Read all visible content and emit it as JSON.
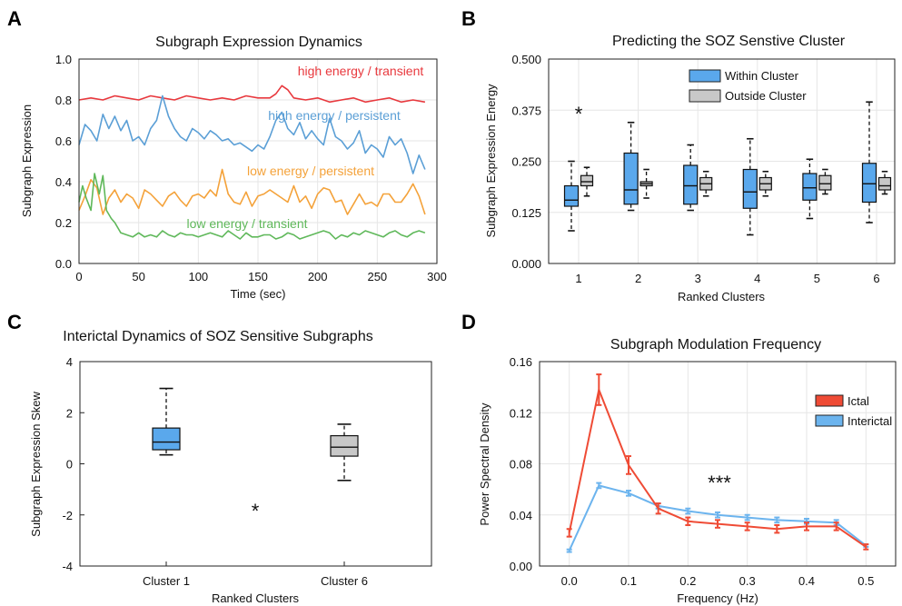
{
  "panels": {
    "A": "A",
    "B": "B",
    "C": "C",
    "D": "D"
  },
  "colors": {
    "red": "#e8383d",
    "blue": "#5b9fd6",
    "orange": "#f4a23a",
    "green": "#5fb85a",
    "box_blue": "#5aa8ec",
    "box_gray": "#c8c8c8",
    "ictal": "#ef4b35",
    "interictal": "#6cb4ee"
  },
  "chart_data": [
    {
      "type": "line",
      "title": "Subgraph Expression Dynamics",
      "xlabel": "Time (sec)",
      "ylabel": "Subgraph Expression",
      "xlim": [
        0,
        300
      ],
      "ylim": [
        0,
        1.0
      ],
      "xticks": [
        "0",
        "50",
        "100",
        "150",
        "200",
        "250",
        "300"
      ],
      "yticks": [
        "0.0",
        "0.2",
        "0.4",
        "0.6",
        "0.8",
        "1.0"
      ],
      "grid": true,
      "annotations": [
        {
          "text": "high energy / transient",
          "color": "#e8383d"
        },
        {
          "text": "high energy / persistent",
          "color": "#5b9fd6"
        },
        {
          "text": "low energy  / persistent",
          "color": "#f4a23a"
        },
        {
          "text": "low energy  / transient",
          "color": "#5fb85a"
        }
      ],
      "series": [
        {
          "color": "#e8383d",
          "x": [
            0,
            10,
            20,
            30,
            40,
            50,
            60,
            70,
            80,
            90,
            100,
            110,
            120,
            130,
            140,
            150,
            160,
            165,
            170,
            175,
            180,
            190,
            200,
            210,
            220,
            230,
            240,
            250,
            260,
            270,
            280,
            290
          ],
          "y": [
            0.8,
            0.81,
            0.8,
            0.82,
            0.81,
            0.8,
            0.82,
            0.81,
            0.8,
            0.82,
            0.81,
            0.8,
            0.81,
            0.8,
            0.82,
            0.81,
            0.81,
            0.83,
            0.87,
            0.85,
            0.81,
            0.8,
            0.81,
            0.79,
            0.8,
            0.81,
            0.79,
            0.8,
            0.81,
            0.79,
            0.8,
            0.79
          ]
        },
        {
          "color": "#5b9fd6",
          "x": [
            0,
            5,
            10,
            15,
            20,
            25,
            30,
            35,
            40,
            45,
            50,
            55,
            60,
            65,
            70,
            75,
            80,
            85,
            90,
            95,
            100,
            105,
            110,
            115,
            120,
            125,
            130,
            135,
            140,
            145,
            150,
            155,
            160,
            165,
            170,
            175,
            180,
            185,
            190,
            195,
            200,
            205,
            210,
            215,
            220,
            225,
            230,
            235,
            240,
            245,
            250,
            255,
            260,
            265,
            270,
            275,
            280,
            285,
            290
          ],
          "y": [
            0.58,
            0.68,
            0.65,
            0.6,
            0.73,
            0.66,
            0.72,
            0.65,
            0.7,
            0.6,
            0.62,
            0.58,
            0.66,
            0.7,
            0.82,
            0.72,
            0.66,
            0.62,
            0.6,
            0.66,
            0.64,
            0.61,
            0.65,
            0.63,
            0.6,
            0.61,
            0.58,
            0.59,
            0.57,
            0.55,
            0.58,
            0.56,
            0.62,
            0.7,
            0.74,
            0.66,
            0.63,
            0.69,
            0.61,
            0.65,
            0.61,
            0.58,
            0.71,
            0.62,
            0.6,
            0.56,
            0.59,
            0.65,
            0.54,
            0.58,
            0.56,
            0.52,
            0.62,
            0.58,
            0.61,
            0.54,
            0.44,
            0.53,
            0.46
          ]
        },
        {
          "color": "#f4a23a",
          "x": [
            0,
            5,
            10,
            15,
            20,
            25,
            30,
            35,
            40,
            45,
            50,
            55,
            60,
            65,
            70,
            75,
            80,
            85,
            90,
            95,
            100,
            105,
            110,
            115,
            120,
            125,
            130,
            135,
            140,
            145,
            150,
            155,
            160,
            165,
            170,
            175,
            180,
            185,
            190,
            195,
            200,
            205,
            210,
            215,
            220,
            225,
            230,
            235,
            240,
            245,
            250,
            255,
            260,
            265,
            270,
            275,
            280,
            285,
            290
          ],
          "y": [
            0.26,
            0.33,
            0.41,
            0.37,
            0.24,
            0.32,
            0.36,
            0.3,
            0.34,
            0.32,
            0.27,
            0.36,
            0.34,
            0.31,
            0.28,
            0.33,
            0.35,
            0.31,
            0.28,
            0.33,
            0.34,
            0.32,
            0.36,
            0.33,
            0.46,
            0.34,
            0.3,
            0.29,
            0.35,
            0.28,
            0.33,
            0.34,
            0.36,
            0.34,
            0.32,
            0.3,
            0.38,
            0.3,
            0.33,
            0.27,
            0.34,
            0.37,
            0.36,
            0.3,
            0.31,
            0.24,
            0.29,
            0.34,
            0.29,
            0.3,
            0.28,
            0.34,
            0.34,
            0.3,
            0.3,
            0.34,
            0.39,
            0.33,
            0.24
          ]
        },
        {
          "color": "#5fb85a",
          "x": [
            0,
            3,
            6,
            10,
            13,
            17,
            20,
            23,
            27,
            30,
            35,
            40,
            45,
            50,
            55,
            60,
            65,
            70,
            75,
            80,
            85,
            90,
            95,
            100,
            105,
            110,
            115,
            120,
            125,
            130,
            135,
            140,
            145,
            150,
            155,
            160,
            165,
            170,
            175,
            180,
            185,
            190,
            195,
            200,
            205,
            210,
            215,
            220,
            225,
            230,
            235,
            240,
            245,
            250,
            255,
            260,
            265,
            270,
            275,
            280,
            285,
            290
          ],
          "y": [
            0.3,
            0.38,
            0.32,
            0.26,
            0.44,
            0.34,
            0.43,
            0.26,
            0.22,
            0.2,
            0.15,
            0.14,
            0.13,
            0.15,
            0.13,
            0.14,
            0.13,
            0.16,
            0.14,
            0.13,
            0.15,
            0.14,
            0.14,
            0.13,
            0.14,
            0.15,
            0.14,
            0.13,
            0.16,
            0.14,
            0.12,
            0.15,
            0.13,
            0.13,
            0.14,
            0.14,
            0.12,
            0.13,
            0.15,
            0.14,
            0.12,
            0.13,
            0.14,
            0.15,
            0.16,
            0.15,
            0.12,
            0.14,
            0.13,
            0.15,
            0.14,
            0.16,
            0.15,
            0.14,
            0.13,
            0.15,
            0.16,
            0.14,
            0.13,
            0.15,
            0.16,
            0.15
          ]
        }
      ]
    },
    {
      "type": "box",
      "title": "Predicting the SOZ Senstive Cluster",
      "xlabel": "Ranked Clusters",
      "ylabel": "Subgraph Expression Energy",
      "ylim": [
        0,
        0.5
      ],
      "yticks": [
        "0.000",
        "0.125",
        "0.250",
        "0.375",
        "0.500"
      ],
      "categories": [
        "1",
        "2",
        "3",
        "4",
        "5",
        "6"
      ],
      "legend": [
        {
          "label": "Within Cluster",
          "color": "#5aa8ec"
        },
        {
          "label": "Outside Cluster",
          "color": "#c8c8c8"
        }
      ],
      "legend_position": "top-right",
      "significance": "*",
      "series": [
        {
          "color": "#5aa8ec",
          "boxes": [
            {
              "min": 0.08,
              "q1": 0.14,
              "median": 0.155,
              "q3": 0.19,
              "max": 0.25
            },
            {
              "min": 0.13,
              "q1": 0.145,
              "median": 0.18,
              "q3": 0.27,
              "max": 0.345
            },
            {
              "min": 0.13,
              "q1": 0.145,
              "median": 0.19,
              "q3": 0.24,
              "max": 0.29
            },
            {
              "min": 0.07,
              "q1": 0.135,
              "median": 0.175,
              "q3": 0.23,
              "max": 0.305
            },
            {
              "min": 0.11,
              "q1": 0.155,
              "median": 0.185,
              "q3": 0.22,
              "max": 0.255
            },
            {
              "min": 0.1,
              "q1": 0.15,
              "median": 0.195,
              "q3": 0.245,
              "max": 0.395
            }
          ]
        },
        {
          "color": "#c8c8c8",
          "boxes": [
            {
              "min": 0.165,
              "q1": 0.19,
              "median": 0.2,
              "q3": 0.215,
              "max": 0.235
            },
            {
              "min": 0.16,
              "q1": 0.19,
              "median": 0.195,
              "q3": 0.2,
              "max": 0.23
            },
            {
              "min": 0.165,
              "q1": 0.18,
              "median": 0.195,
              "q3": 0.21,
              "max": 0.225
            },
            {
              "min": 0.165,
              "q1": 0.18,
              "median": 0.195,
              "q3": 0.21,
              "max": 0.225
            },
            {
              "min": 0.17,
              "q1": 0.18,
              "median": 0.195,
              "q3": 0.215,
              "max": 0.23
            },
            {
              "min": 0.17,
              "q1": 0.18,
              "median": 0.19,
              "q3": 0.21,
              "max": 0.225
            }
          ]
        }
      ]
    },
    {
      "type": "box",
      "title": "Interictal Dynamics of SOZ Sensitive Subgraphs",
      "xlabel": "Ranked Clusters",
      "ylabel": "Subgraph Expression Skew",
      "ylim": [
        -4,
        4
      ],
      "yticks": [
        "4",
        "2",
        "0",
        "-2",
        "-4"
      ],
      "categories": [
        "Cluster 1",
        "Cluster 6"
      ],
      "significance": "*",
      "boxes": [
        {
          "color": "#5aa8ec",
          "min": 0.35,
          "q1": 0.55,
          "median": 0.85,
          "q3": 1.4,
          "max": 2.95
        },
        {
          "color": "#c8c8c8",
          "min": -0.65,
          "q1": 0.3,
          "median": 0.65,
          "q3": 1.1,
          "max": 1.55
        }
      ]
    },
    {
      "type": "line",
      "title": "Subgraph Modulation Frequency",
      "xlabel": "Frequency (Hz)",
      "ylabel": "Power Spectral Density",
      "xlim": [
        -0.05,
        0.55
      ],
      "ylim": [
        0,
        0.16
      ],
      "xticks": [
        "0.0",
        "0.1",
        "0.2",
        "0.3",
        "0.4",
        "0.5"
      ],
      "yticks": [
        "0.00",
        "0.04",
        "0.08",
        "0.12",
        "0.16"
      ],
      "grid": true,
      "legend_position": "top-right",
      "significance": "***",
      "x": [
        0.0,
        0.05,
        0.1,
        0.15,
        0.2,
        0.25,
        0.3,
        0.35,
        0.4,
        0.45,
        0.5
      ],
      "series": [
        {
          "name": "Ictal",
          "color": "#ef4b35",
          "values": [
            0.026,
            0.138,
            0.079,
            0.045,
            0.035,
            0.033,
            0.031,
            0.029,
            0.031,
            0.031,
            0.015
          ],
          "err": [
            0.003,
            0.012,
            0.007,
            0.004,
            0.003,
            0.003,
            0.003,
            0.003,
            0.003,
            0.003,
            0.002
          ]
        },
        {
          "name": "Interictal",
          "color": "#6cb4ee",
          "values": [
            0.012,
            0.063,
            0.057,
            0.047,
            0.043,
            0.04,
            0.038,
            0.036,
            0.035,
            0.034,
            0.016
          ],
          "err": [
            0.001,
            0.002,
            0.002,
            0.002,
            0.002,
            0.002,
            0.002,
            0.002,
            0.002,
            0.002,
            0.001
          ]
        }
      ]
    }
  ]
}
